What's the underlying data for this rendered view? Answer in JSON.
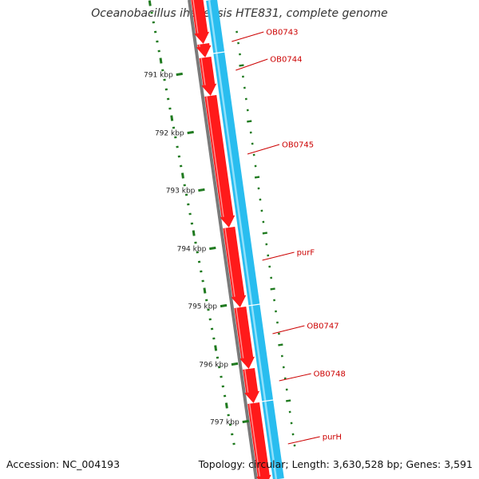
{
  "title": "Oceanobacillus iheyensis HTE831, complete genome",
  "footer": {
    "accession": "Accession: NC_004193",
    "summary": "Topology: circular; Length: 3,630,528 bp; Genes: 3,591"
  },
  "colors": {
    "gene_forward": "#ff1a1a",
    "gene_reverse": "#29bdef",
    "backbone": "#7a7a7a",
    "gc_ticks": "#1f7a1f",
    "label": "#cc0000",
    "scale_text": "#222222"
  },
  "scale_ticks": [
    "791 kbp",
    "792 kbp",
    "793 kbp",
    "794 kbp",
    "795 kbp",
    "796 kbp",
    "797 kbp"
  ],
  "genes": [
    {
      "name": "OB0743",
      "strand": "forward"
    },
    {
      "name": "OB0744",
      "strand": "reverse"
    },
    {
      "name": "OB0745",
      "strand": "forward"
    },
    {
      "name": "purF",
      "strand": "forward"
    },
    {
      "name": "OB0747",
      "strand": "forward"
    },
    {
      "name": "OB0748",
      "strand": "forward"
    },
    {
      "name": "purH",
      "strand": "forward"
    }
  ]
}
